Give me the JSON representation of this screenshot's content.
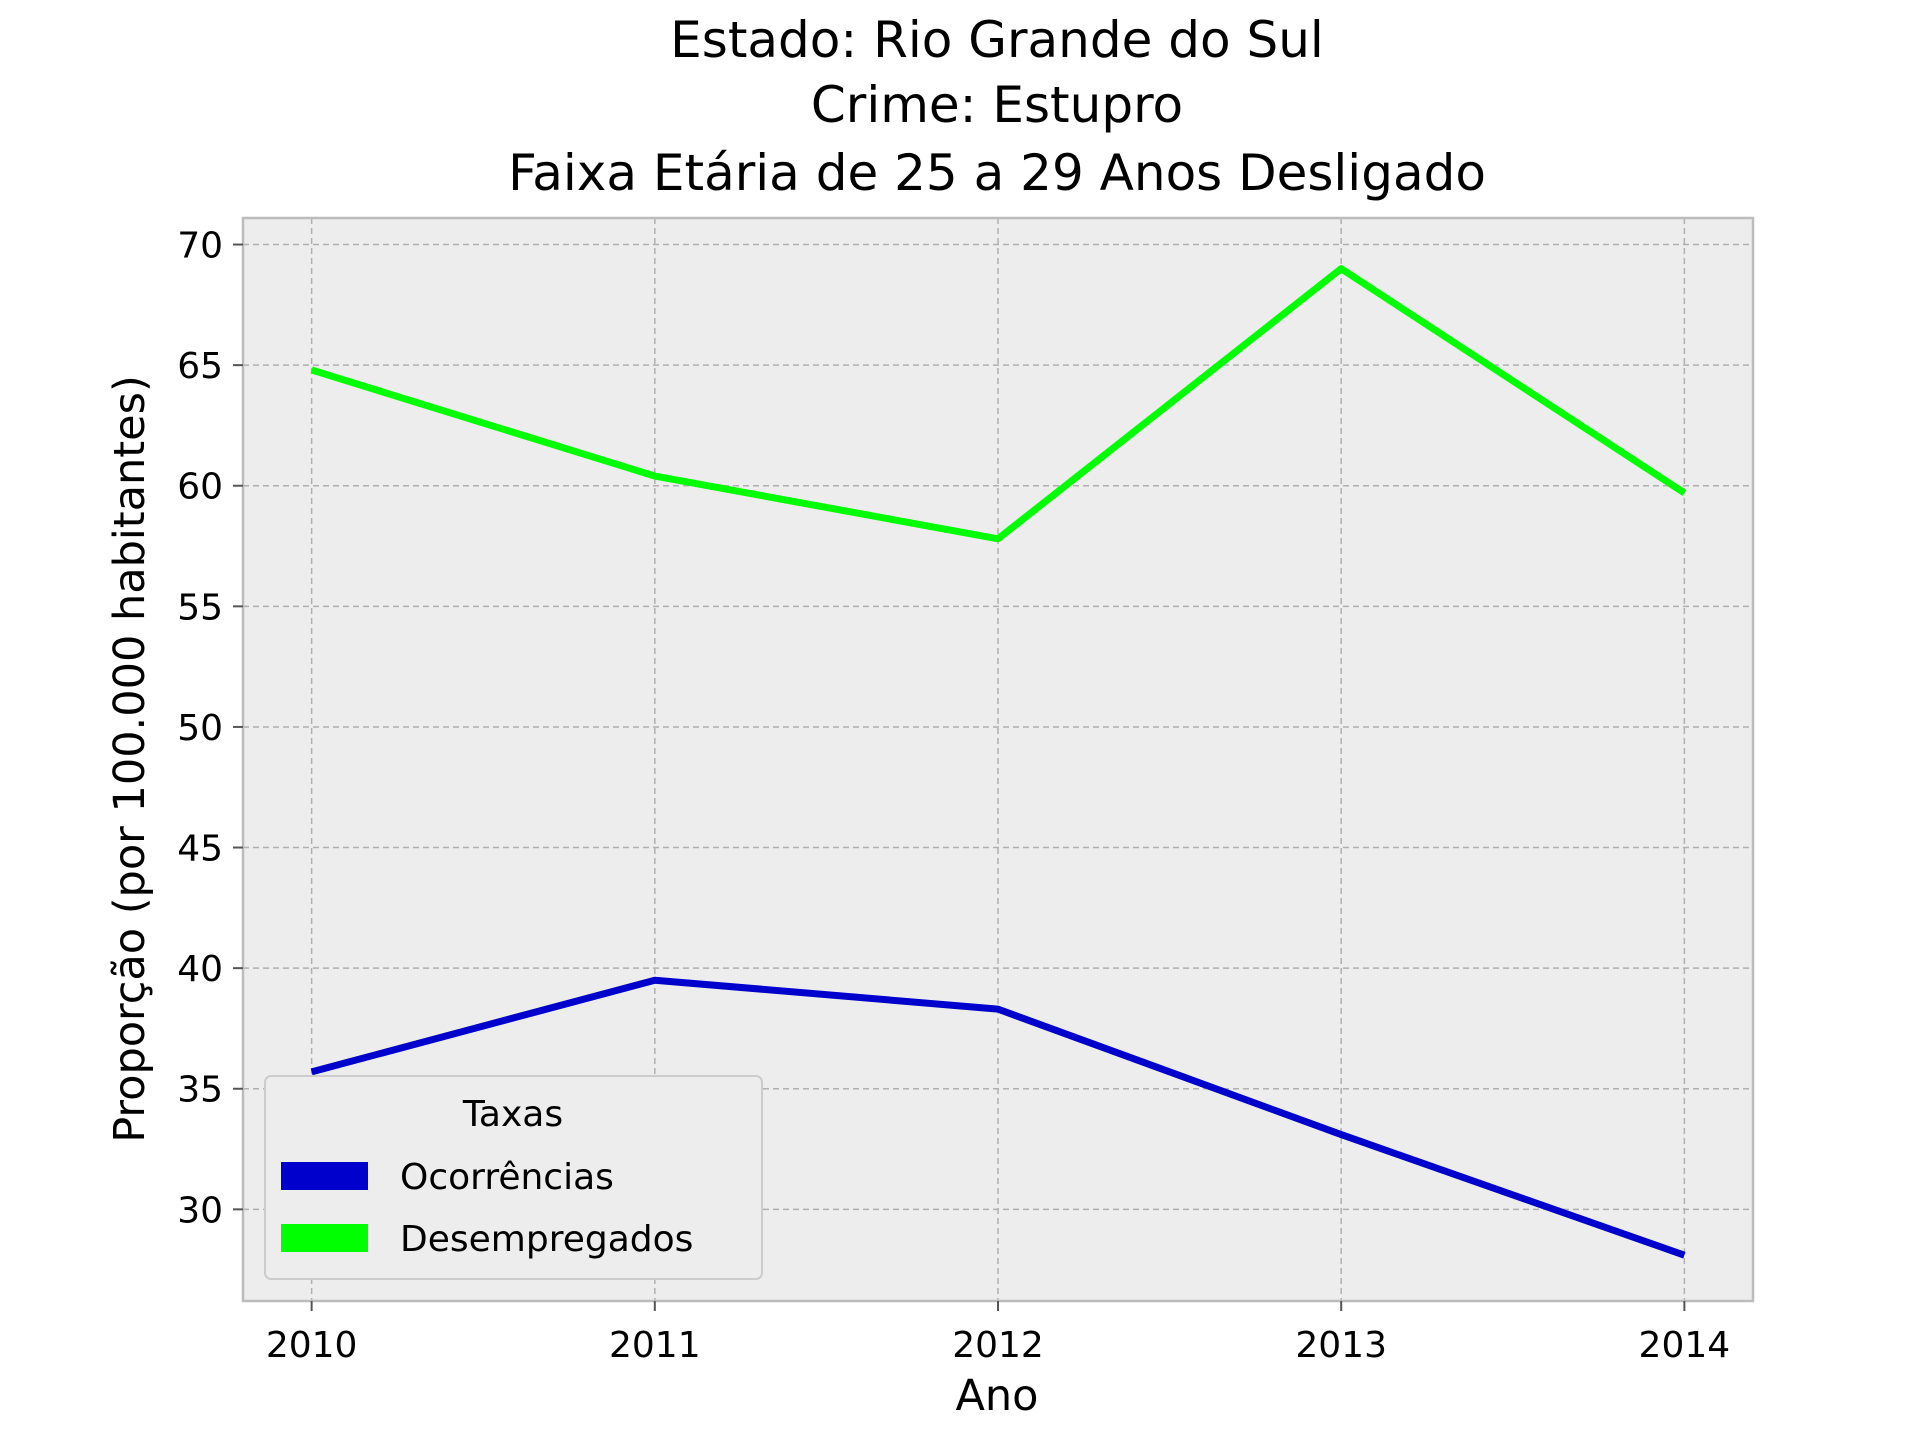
{
  "chart_data": {
    "type": "line",
    "title_lines": [
      "Estado: Rio Grande do Sul",
      "Crime: Estupro",
      "Faixa Etária de 25 a 29 Anos   Desligado"
    ],
    "xlabel": "Ano",
    "ylabel": "Proporção (por 100.000 habitantes)",
    "x": [
      2010,
      2011,
      2012,
      2013,
      2014
    ],
    "x_tick_labels": [
      "2010",
      "2011",
      "2012",
      "2013",
      "2014"
    ],
    "y_ticks": [
      30,
      35,
      40,
      45,
      50,
      55,
      60,
      65,
      70
    ],
    "y_tick_labels": [
      "30",
      "35",
      "40",
      "45",
      "50",
      "55",
      "60",
      "65",
      "70"
    ],
    "xlim": [
      2009.8,
      2014.2
    ],
    "ylim": [
      26.2,
      71.1
    ],
    "grid": true,
    "series": [
      {
        "name": "Ocorrências",
        "color": "#0000cc",
        "values": [
          35.7,
          39.5,
          38.3,
          33.1,
          28.1
        ]
      },
      {
        "name": "Desempregados",
        "color": "#00ff00",
        "values": [
          64.8,
          60.4,
          57.8,
          69.0,
          59.7
        ]
      }
    ],
    "legend": {
      "title": "Taxas",
      "placement": "lower-left"
    },
    "colors": {
      "plot_background": "#ededed",
      "grid": "#b0b0b0",
      "frame": "#bcbcbc"
    }
  }
}
